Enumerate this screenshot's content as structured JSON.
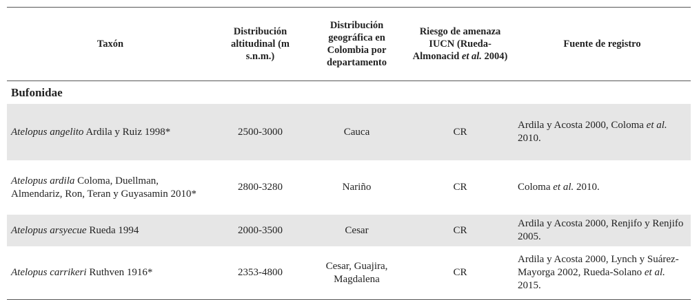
{
  "table": {
    "header": [
      [
        {
          "text": "Taxón"
        }
      ],
      [
        {
          "text": "Distribución altitudinal (m s.n.m.)"
        }
      ],
      [
        {
          "text": "Distribución geográfica en Colombia por departamento"
        }
      ],
      [
        {
          "text": "Riesgo de amenaza IUCN (Rueda-Almonacid"
        },
        {
          "text": "et al.",
          "italic": true
        },
        {
          "text": "2004)"
        }
      ],
      [
        {
          "text": "Fuente de registro"
        }
      ]
    ],
    "family": "Bufonidae",
    "rows": [
      {
        "taxon": [
          {
            "text": "Atelopus angelito",
            "italic": true
          },
          {
            "text": "Ardila y Ruiz 1998*"
          }
        ],
        "altitude": "2500-3000",
        "distribution": "Cauca",
        "risk": "CR",
        "source": [
          {
            "text": "Ardila y Acosta 2000, Coloma"
          },
          {
            "text": "et al.",
            "italic": true
          },
          {
            "text": "2010."
          }
        ]
      },
      {
        "taxon": [
          {
            "text": "Atelopus ardila",
            "italic": true
          },
          {
            "text": "Coloma, Duellman, Almendariz, Ron, Teran y Guyasamin 2010*"
          }
        ],
        "altitude": "2800-3280",
        "distribution": "Nariño",
        "risk": "CR",
        "source": [
          {
            "text": "Coloma"
          },
          {
            "text": "et al.",
            "italic": true
          },
          {
            "text": " 2010."
          }
        ]
      },
      {
        "taxon": [
          {
            "text": "Atelopus arsyecue",
            "italic": true
          },
          {
            "text": "Rueda 1994"
          }
        ],
        "altitude": "2000-3500",
        "distribution": "Cesar",
        "risk": "CR",
        "source": [
          {
            "text": "Ardila y Acosta 2000, Renjifo y Renjifo 2005."
          }
        ]
      },
      {
        "taxon": [
          {
            "text": "Atelopus carrikeri",
            "italic": true
          },
          {
            "text": "Ruthven 1916*"
          }
        ],
        "altitude": "2353-4800",
        "distribution": "Cesar, Guajira, Magdalena",
        "risk": "CR",
        "source": [
          {
            "text": "Ardila y Acosta 2000, Lynch y Suárez-Mayorga 2002, Rueda-Solano"
          },
          {
            "text": "et al.",
            "italic": true
          },
          {
            "text": " 2015."
          }
        ]
      }
    ]
  }
}
